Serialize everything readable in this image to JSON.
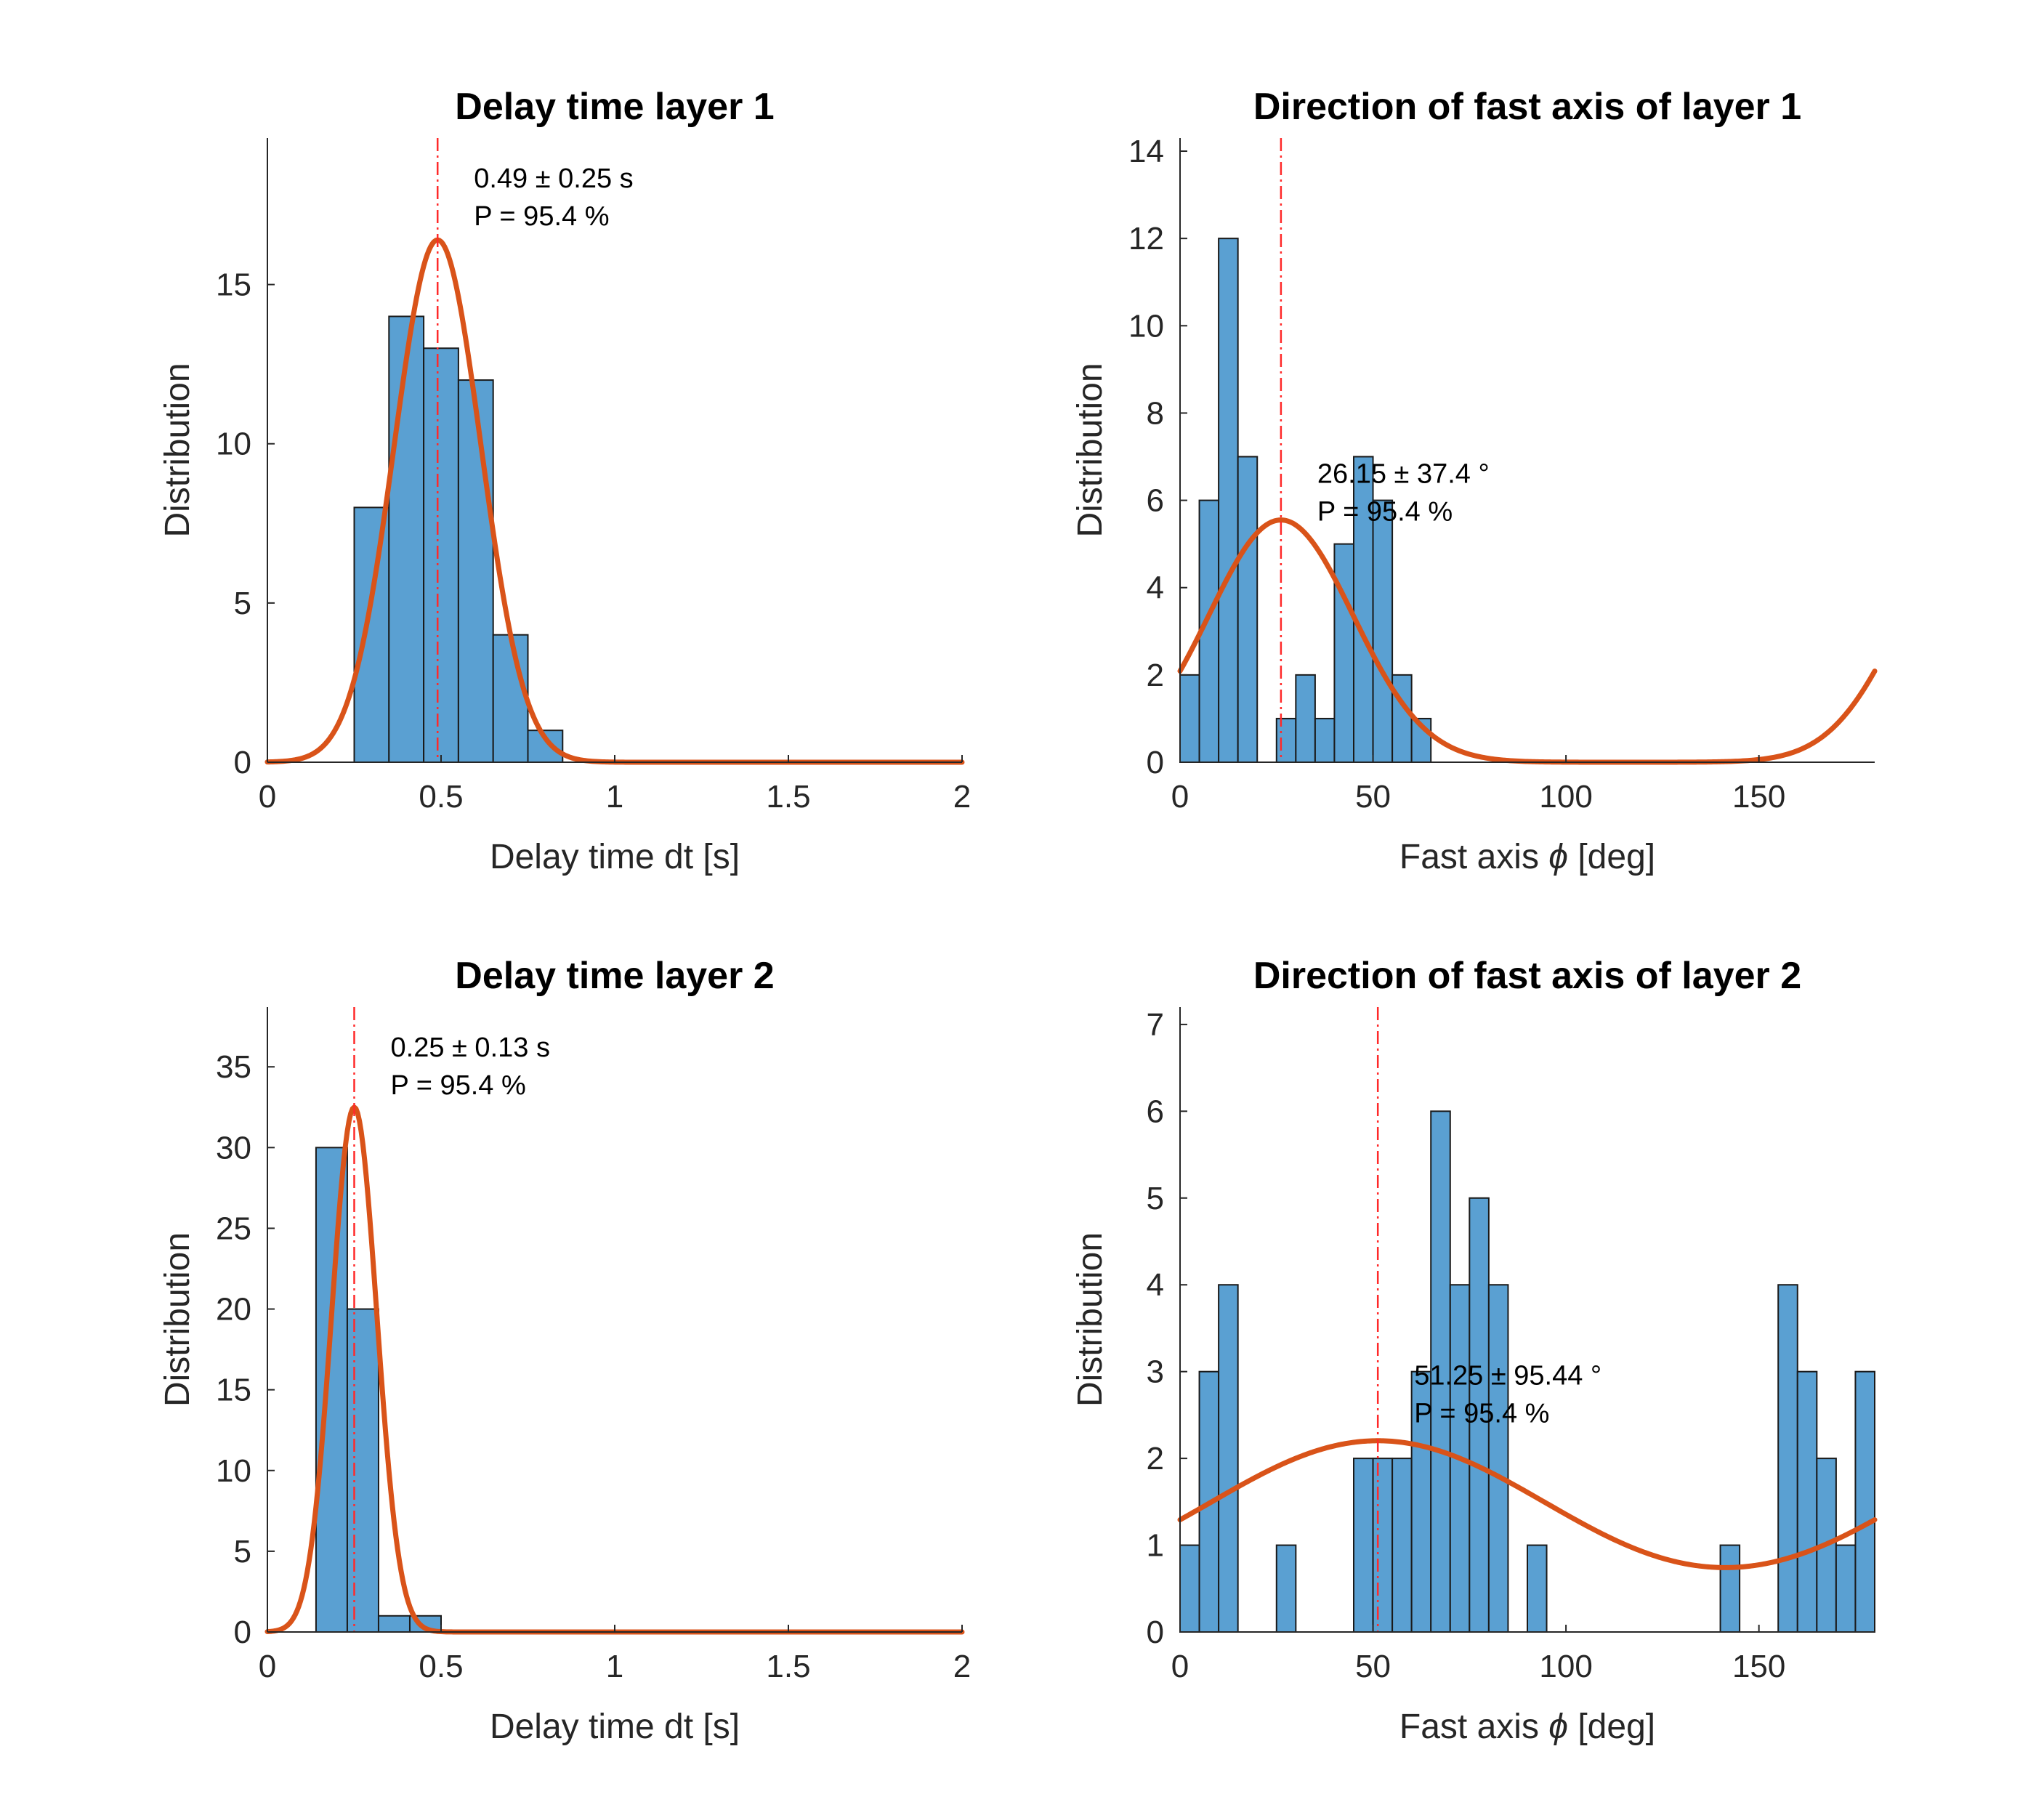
{
  "colors": {
    "bar_fill": "#5aa0d2",
    "fit_line": "#d95319",
    "mean_line": "#ff2a2a"
  },
  "chart_data": [
    {
      "type": "bar",
      "title": "Delay time layer 1",
      "xlabel": "Delay time dt [s]",
      "ylabel": "Distribution",
      "xlim": [
        0,
        2
      ],
      "ylim": [
        0,
        19.6
      ],
      "xticks": [
        0,
        0.5,
        1,
        1.5,
        2
      ],
      "xtick_labels": [
        "0",
        "0.5",
        "1",
        "1.5",
        "2"
      ],
      "yticks": [
        0,
        5,
        10,
        15
      ],
      "ytick_labels": [
        "0",
        "5",
        "10",
        "15"
      ],
      "bin_width": 0.1,
      "bins": [
        {
          "x": 0.25,
          "y": 8
        },
        {
          "x": 0.35,
          "y": 14
        },
        {
          "x": 0.45,
          "y": 13
        },
        {
          "x": 0.55,
          "y": 12
        },
        {
          "x": 0.65,
          "y": 4
        },
        {
          "x": 0.75,
          "y": 1
        }
      ],
      "fit": {
        "kind": "gaussian",
        "mean": 0.49,
        "sigma": 0.125,
        "peak": 16.4
      },
      "mean_line": 0.49,
      "annotation": [
        "0.49 ± 0.25 s",
        "P = 95.4 %"
      ]
    },
    {
      "type": "bar",
      "title": "Direction of fast axis of layer 1",
      "xlabel_parts": [
        "Fast axis ",
        "ϕ",
        " [deg]"
      ],
      "ylabel": "Distribution",
      "xlim": [
        0,
        180
      ],
      "ylim": [
        0,
        14.3
      ],
      "xticks": [
        0,
        50,
        100,
        150
      ],
      "xtick_labels": [
        "0",
        "50",
        "100",
        "150"
      ],
      "yticks": [
        0,
        2,
        4,
        6,
        8,
        10,
        12,
        14
      ],
      "ytick_labels": [
        "0",
        "2",
        "4",
        "6",
        "8",
        "10",
        "12",
        "14"
      ],
      "bin_width": 5,
      "bins": [
        {
          "x": 0,
          "y": 2
        },
        {
          "x": 5,
          "y": 6
        },
        {
          "x": 10,
          "y": 12
        },
        {
          "x": 15,
          "y": 7
        },
        {
          "x": 25,
          "y": 1
        },
        {
          "x": 30,
          "y": 2
        },
        {
          "x": 35,
          "y": 1
        },
        {
          "x": 40,
          "y": 5
        },
        {
          "x": 45,
          "y": 7
        },
        {
          "x": 50,
          "y": 6
        },
        {
          "x": 55,
          "y": 2
        },
        {
          "x": 60,
          "y": 1
        }
      ],
      "fit": {
        "kind": "periodic",
        "mean": 26.15,
        "sigma": 18.7,
        "peak": 5.55,
        "period": 180
      },
      "mean_line": 26.15,
      "annotation": [
        "26.15 ± 37.4 °",
        "P = 95.4 %"
      ]
    },
    {
      "type": "bar",
      "title": "Delay time layer 2",
      "xlabel": "Delay time dt [s]",
      "ylabel": "Distribution",
      "xlim": [
        0,
        2
      ],
      "ylim": [
        0,
        38.7
      ],
      "xticks": [
        0,
        0.5,
        1,
        1.5,
        2
      ],
      "xtick_labels": [
        "0",
        "0.5",
        "1",
        "1.5",
        "2"
      ],
      "yticks": [
        0,
        5,
        10,
        15,
        20,
        25,
        30,
        35
      ],
      "ytick_labels": [
        "0",
        "5",
        "10",
        "15",
        "20",
        "25",
        "30",
        "35"
      ],
      "bin_width": 0.09,
      "bins": [
        {
          "x": 0.14,
          "y": 30
        },
        {
          "x": 0.23,
          "y": 20
        },
        {
          "x": 0.32,
          "y": 1
        },
        {
          "x": 0.41,
          "y": 1
        }
      ],
      "fit": {
        "kind": "gaussian",
        "mean": 0.25,
        "sigma": 0.065,
        "peak": 32.5
      },
      "mean_line": 0.25,
      "annotation": [
        "0.25 ± 0.13 s",
        "P = 95.4 %"
      ]
    },
    {
      "type": "bar",
      "title": "Direction of fast axis of layer 2",
      "xlabel_parts": [
        "Fast axis ",
        "ϕ",
        " [deg]"
      ],
      "ylabel": "Distribution",
      "xlim": [
        0,
        180
      ],
      "ylim": [
        0,
        7.2
      ],
      "xticks": [
        0,
        50,
        100,
        150
      ],
      "xtick_labels": [
        "0",
        "50",
        "100",
        "150"
      ],
      "yticks": [
        0,
        1,
        2,
        3,
        4,
        5,
        6,
        7
      ],
      "ytick_labels": [
        "0",
        "1",
        "2",
        "3",
        "4",
        "5",
        "6",
        "7"
      ],
      "bin_width": 5,
      "bins": [
        {
          "x": 0,
          "y": 1
        },
        {
          "x": 5,
          "y": 3
        },
        {
          "x": 10,
          "y": 4
        },
        {
          "x": 25,
          "y": 1
        },
        {
          "x": 45,
          "y": 2
        },
        {
          "x": 50,
          "y": 2
        },
        {
          "x": 55,
          "y": 2
        },
        {
          "x": 60,
          "y": 3
        },
        {
          "x": 65,
          "y": 6
        },
        {
          "x": 70,
          "y": 4
        },
        {
          "x": 75,
          "y": 5
        },
        {
          "x": 80,
          "y": 4
        },
        {
          "x": 90,
          "y": 1
        },
        {
          "x": 140,
          "y": 1
        },
        {
          "x": 155,
          "y": 4
        },
        {
          "x": 160,
          "y": 3
        },
        {
          "x": 165,
          "y": 2
        },
        {
          "x": 170,
          "y": 1
        },
        {
          "x": 175,
          "y": 3
        }
      ],
      "fit": {
        "kind": "periodic",
        "mean": 51.25,
        "sigma": 47.7,
        "peak": 2.2,
        "period": 180
      },
      "mean_line": 51.25,
      "annotation": [
        "51.25 ± 95.44 °",
        "P = 95.4 %"
      ]
    }
  ]
}
